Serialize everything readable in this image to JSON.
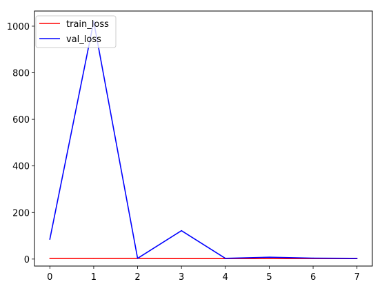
{
  "chart_data": {
    "type": "line",
    "title": "",
    "xlabel": "",
    "ylabel": "",
    "x": [
      0,
      1,
      2,
      3,
      4,
      5,
      6,
      7
    ],
    "xlim": [
      -0.35,
      7.35
    ],
    "ylim": [
      -30,
      1065
    ],
    "xticks": [
      0,
      1,
      2,
      3,
      4,
      5,
      6,
      7
    ],
    "yticks": [
      0,
      200,
      400,
      600,
      800,
      1000
    ],
    "grid": false,
    "legend_position": "upper-left",
    "series": [
      {
        "name": "train_loss",
        "color": "#ff0000",
        "values": [
          3,
          3,
          3,
          2,
          2,
          2,
          2,
          2
        ]
      },
      {
        "name": "val_loss",
        "color": "#0000ff",
        "values": [
          85,
          1020,
          3,
          122,
          3,
          8,
          4,
          3
        ]
      }
    ]
  }
}
